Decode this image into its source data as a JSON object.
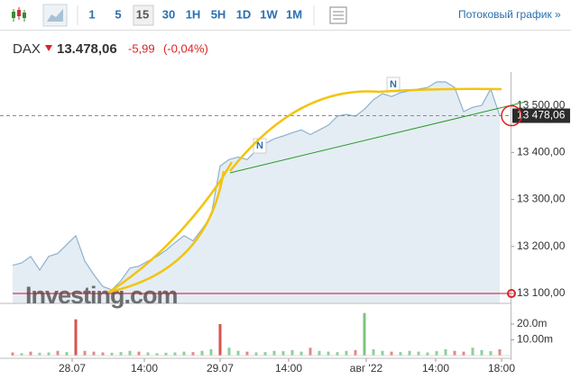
{
  "toolbar": {
    "intervals": [
      "1",
      "5",
      "15",
      "30",
      "1H",
      "5H",
      "1D",
      "1W",
      "1M"
    ],
    "selected": "15",
    "stream_link": "Потоковый график »"
  },
  "header": {
    "symbol": "DAX",
    "price": "13.478,06",
    "change": "-5,99",
    "change_pct": "(-0,04%)"
  },
  "chart_data": {
    "type": "area",
    "watermark": "Investing.com",
    "annotations": [
      "N",
      "N"
    ],
    "line_color": "#8fb1cc",
    "fill_color": "#e4edf4",
    "values": [
      13160,
      13165,
      13179,
      13150,
      13179,
      13185,
      13204,
      13223,
      13169,
      13140,
      13115,
      13108,
      13127,
      13154,
      13158,
      13169,
      13179,
      13192,
      13208,
      13223,
      13212,
      13237,
      13265,
      13371,
      13385,
      13390,
      13385,
      13404,
      13419,
      13429,
      13435,
      13442,
      13448,
      13438,
      13448,
      13458,
      13477,
      13481,
      13477,
      13492,
      13512,
      13525,
      13519,
      13527,
      13531,
      13535,
      13538,
      13550,
      13550,
      13538,
      13487,
      13496,
      13500,
      13535,
      13478
    ],
    "xlim": [
      0,
      55.2
    ],
    "xticks": [
      {
        "value": 6.6,
        "label": "28.07"
      },
      {
        "value": 14.6,
        "label": "14:00"
      },
      {
        "value": 23,
        "label": "29.07"
      },
      {
        "value": 30.6,
        "label": "14:00"
      },
      {
        "value": 39.2,
        "label": "авг '22"
      },
      {
        "value": 46.9,
        "label": "14:00"
      },
      {
        "value": 54.2,
        "label": "18:00"
      }
    ],
    "ylim": [
      13079,
      13571
    ],
    "yticks": [
      {
        "value": 13100,
        "label": "13 100,00"
      },
      {
        "value": 13200,
        "label": "13 200,00"
      },
      {
        "value": 13300,
        "label": "13 300,00"
      },
      {
        "value": 13400,
        "label": "13 400,00"
      },
      {
        "value": 13500,
        "label": "13 500,00"
      }
    ],
    "price_line": {
      "value": 13478.06,
      "label": "13 478,06",
      "color": "#b07a8a"
    },
    "level_line": {
      "value": 13100,
      "color": "#c8102e"
    },
    "volume": {
      "values": [
        2,
        1.5,
        2.5,
        1.8,
        2,
        3,
        2.2,
        23,
        3,
        2.5,
        2,
        1.8,
        2.2,
        3,
        2.5,
        2,
        1.5,
        1.8,
        2,
        2.5,
        2.2,
        3,
        4,
        20,
        5,
        3,
        2.5,
        2,
        2.2,
        3,
        2.8,
        3.5,
        2.5,
        5,
        3,
        2.5,
        2.2,
        3,
        3.5,
        27,
        4,
        3,
        2.5,
        2.2,
        3,
        2.5,
        2,
        2.8,
        4,
        3,
        2.5,
        5,
        3.5,
        2.8,
        4
      ],
      "colors": [
        "#e08a8a",
        "#8fcf9a",
        "#e08a8a",
        "#8fcf9a",
        "#8fcf9a",
        "#e08a8a",
        "#8fcf9a",
        "#d9534f",
        "#e08a8a",
        "#e08a8a",
        "#e08a8a",
        "#8fcf9a",
        "#8fcf9a",
        "#8fcf9a",
        "#e08a8a",
        "#8fcf9a",
        "#8fcf9a",
        "#8fcf9a",
        "#8fcf9a",
        "#8fcf9a",
        "#e08a8a",
        "#8fcf9a",
        "#8fcf9a",
        "#d9534f",
        "#8fcf9a",
        "#8fcf9a",
        "#e08a8a",
        "#8fcf9a",
        "#8fcf9a",
        "#8fcf9a",
        "#8fcf9a",
        "#8fcf9a",
        "#8fcf9a",
        "#e08a8a",
        "#8fcf9a",
        "#8fcf9a",
        "#8fcf9a",
        "#8fcf9a",
        "#e08a8a",
        "#7cc47c",
        "#8fcf9a",
        "#8fcf9a",
        "#e08a8a",
        "#8fcf9a",
        "#8fcf9a",
        "#8fcf9a",
        "#8fcf9a",
        "#8fcf9a",
        "#8fcf9a",
        "#e08a8a",
        "#e08a8a",
        "#8fcf9a",
        "#8fcf9a",
        "#8fcf9a",
        "#e08a8a"
      ],
      "y2lim": [
        0,
        31.4
      ],
      "y2ticks": [
        {
          "value": 10,
          "label": "10.00m"
        },
        {
          "value": 20,
          "label": "20.0m"
        }
      ]
    }
  }
}
